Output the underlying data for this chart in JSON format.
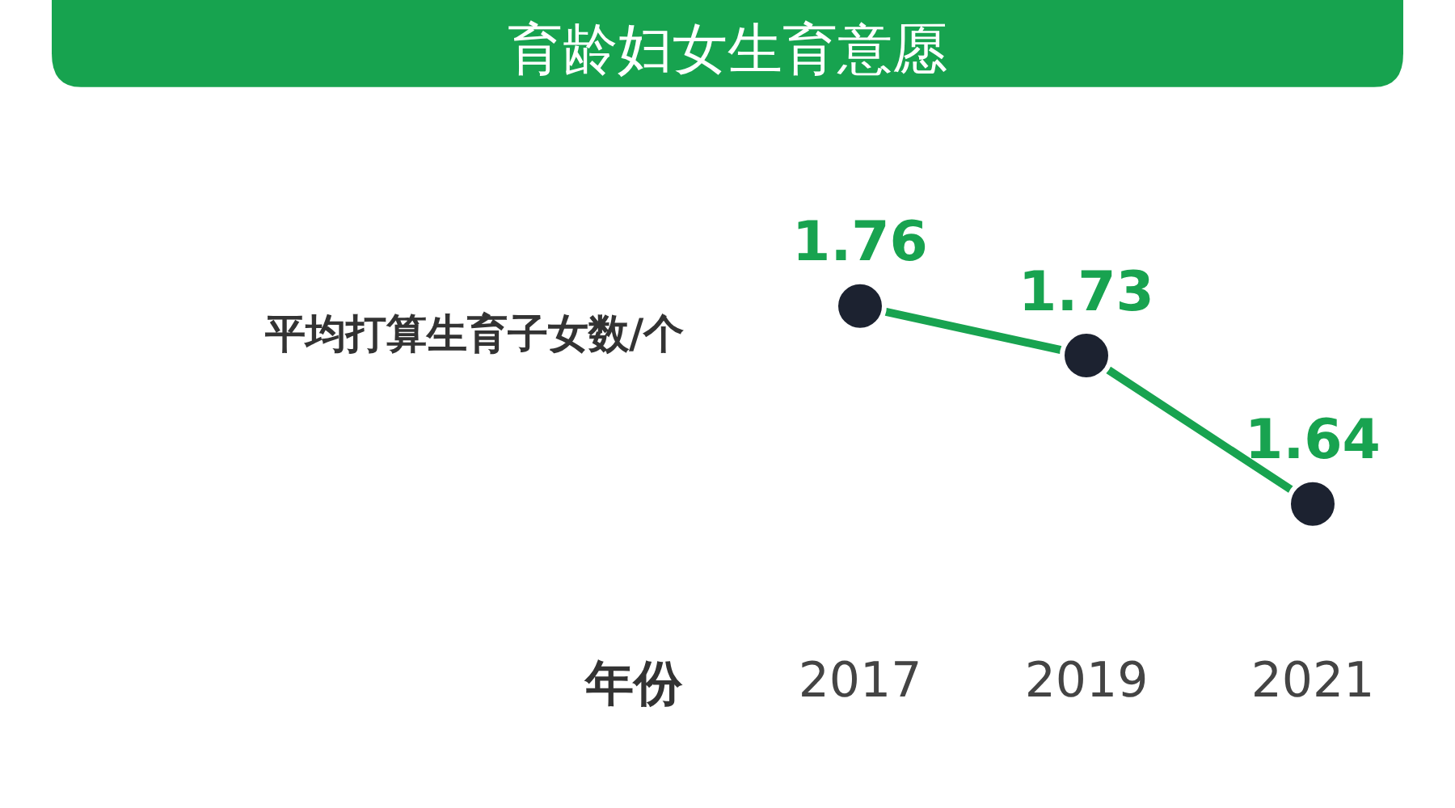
{
  "chart_data": {
    "type": "line",
    "title": "育龄妇女生育意愿",
    "xlabel": "年份",
    "ylabel": "平均打算生育子女数/个",
    "categories": [
      "2017",
      "2019",
      "2021"
    ],
    "series": [
      {
        "color": "#18a350",
        "values": [
          1.76,
          1.73,
          1.64
        ]
      }
    ],
    "data_labels": true,
    "marker": "circle",
    "grid": false,
    "legend": false
  }
}
